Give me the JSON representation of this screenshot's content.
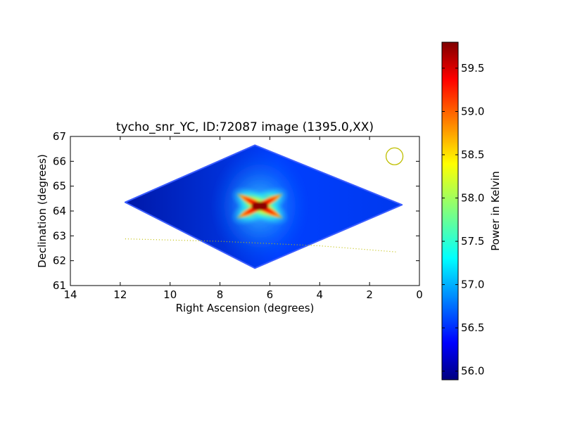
{
  "chart_data": {
    "type": "heatmap",
    "title": "tycho_snr_YC, ID:72087 image (1395.0,XX)",
    "xlabel": "Right Ascension (degrees)",
    "ylabel": "Declination (degrees)",
    "xlim": [
      14,
      0
    ],
    "ylim": [
      61,
      67
    ],
    "x_ticks": [
      14,
      12,
      10,
      8,
      6,
      4,
      2,
      0
    ],
    "y_ticks": [
      61,
      62,
      63,
      64,
      65,
      66,
      67
    ],
    "x_tick_labels": [
      "14",
      "12",
      "10",
      "8",
      "6",
      "4",
      "2",
      "0"
    ],
    "y_tick_labels": [
      "61",
      "62",
      "63",
      "64",
      "65",
      "66",
      "67"
    ],
    "colormap": "jet",
    "colorbar": {
      "label": "Power in Kelvin",
      "min": 55.9,
      "max": 59.8,
      "ticks": [
        56.0,
        56.5,
        57.0,
        57.5,
        58.0,
        58.5,
        59.0,
        59.5
      ],
      "tick_labels": [
        "56.0",
        "56.5",
        "57.0",
        "57.5",
        "58.0",
        "58.5",
        "59.0",
        "59.5"
      ]
    },
    "field_outline_radec": [
      [
        11.8,
        64.35
      ],
      [
        6.6,
        66.65
      ],
      [
        0.7,
        64.25
      ],
      [
        6.6,
        61.7
      ]
    ],
    "field_background_level": 56.4,
    "field_darker_edge_level": 56.0,
    "source": {
      "ra": 6.4,
      "dec": 64.2,
      "peak": 59.8
    },
    "beam_marker": {
      "ra": 1.0,
      "dec": 66.2,
      "color": "#bfbf00"
    },
    "overlay_line": {
      "style": "dotted",
      "color": "#bfbf00",
      "points": [
        [
          11.8,
          62.88
        ],
        [
          8.0,
          62.78
        ],
        [
          4.0,
          62.6
        ],
        [
          0.9,
          62.35
        ]
      ]
    },
    "grid": false,
    "legend": "none"
  }
}
